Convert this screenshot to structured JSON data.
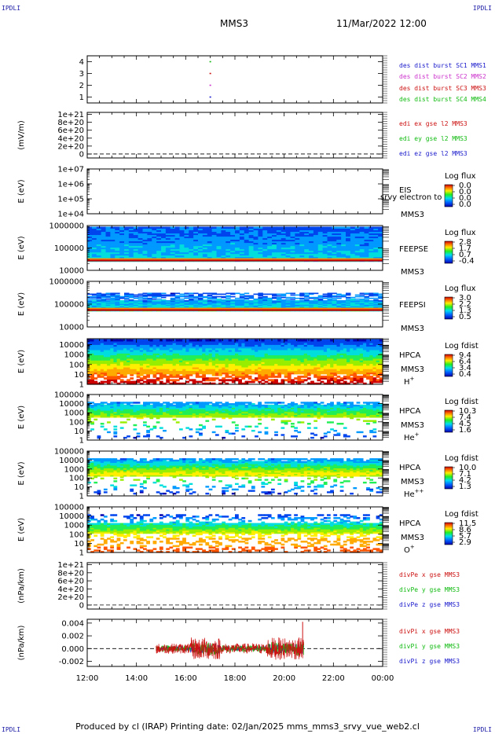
{
  "header": {
    "corner_label": "IPDLI",
    "spacecraft": "MMS3",
    "datetime": "11/Mar/2022 12:00"
  },
  "footer": {
    "text": "Produced by cl (IRAP)   Printing date: 02/Jan/2025   mms_mms3_srvy_vue_web2.cl"
  },
  "colors": {
    "blue": "#1a1acc",
    "magenta": "#cc33cc",
    "red": "#cc1111",
    "green": "#11bb11"
  },
  "chart_data": {
    "type": "line",
    "x_axis": {
      "ticks": [
        "12:00",
        "14:00",
        "16:00",
        "18:00",
        "20:00",
        "22:00",
        "00:00"
      ],
      "range_hours": [
        0,
        12
      ]
    },
    "panels": [
      {
        "id": "des_dist",
        "type": "scatter",
        "ylabel": "",
        "ytick_labels": [
          "4",
          "3",
          "2",
          "1"
        ],
        "ytick_values": [
          4,
          3,
          2,
          1
        ],
        "ylim": [
          0.5,
          4.5
        ],
        "legend": [
          {
            "label": "des dist burst SC1 MMS1",
            "color": "#1a1acc"
          },
          {
            "label": "des dist burst SC2 MMS2",
            "color": "#cc33cc"
          },
          {
            "label": "des dist burst SC3 MMS3",
            "color": "#cc1111"
          },
          {
            "label": "des dist burst SC4 MMS4",
            "color": "#11bb11"
          }
        ],
        "points": [
          {
            "t": 5.0,
            "y": 4,
            "color": "#11bb11"
          },
          {
            "t": 5.0,
            "y": 3,
            "color": "#cc1111"
          },
          {
            "t": 5.0,
            "y": 2,
            "color": "#cc33cc"
          },
          {
            "t": 5.0,
            "y": 1,
            "color": "#1a1acc"
          }
        ]
      },
      {
        "id": "edi_e",
        "type": "line",
        "ylabel": "(mV/m)",
        "ytick_labels": [
          "1e+21",
          "8e+20",
          "6e+20",
          "4e+20",
          "2e+20",
          "0"
        ],
        "ytick_values": [
          1e+21,
          8e+20,
          6e+20,
          4e+20,
          2e+20,
          0
        ],
        "ylim": [
          -1e+20,
          1.05e+21
        ],
        "zero_line": true,
        "legend": [
          {
            "label": "edi ex gse l2 MMS3",
            "color": "#cc1111"
          },
          {
            "label": "edi ey gse l2 MMS3",
            "color": "#11bb11"
          },
          {
            "label": "edi ez gse l2 MMS3",
            "color": "#1a1acc"
          }
        ]
      },
      {
        "id": "eis",
        "type": "heatmap",
        "ylabel": "E (eV)",
        "log": true,
        "ytick_labels": [
          "1e+07",
          "1e+06",
          "1e+05",
          "1e+04"
        ],
        "ytick_values": [
          10000000.0,
          1000000.0,
          100000.0,
          10000.0
        ],
        "ylim": [
          10000.0,
          10000000.0
        ],
        "instrument": [
          "EIS",
          "MMS3"
        ],
        "overlap_text": "srvy electron to",
        "colorbar": {
          "title": "Log flux",
          "labels": [
            "0.0",
            "0.0",
            "0.0",
            "0.0"
          ]
        }
      },
      {
        "id": "feepse",
        "type": "heatmap",
        "ylabel": "E (eV)",
        "log": true,
        "ytick_labels": [
          "1000000",
          "100000",
          "10000"
        ],
        "ytick_values": [
          1000000.0,
          100000.0,
          10000.0
        ],
        "ylim": [
          10000.0,
          1000000.0
        ],
        "instrument": [
          "FEEPSE",
          "MMS3"
        ],
        "colorbar": {
          "title": "Log flux",
          "labels": [
            "2.8",
            "1.7",
            "0.7",
            "-0.4"
          ]
        },
        "data_extent": {
          "t": [
            0,
            12
          ],
          "ylog": [
            4.4,
            5.95
          ]
        }
      },
      {
        "id": "feepsi",
        "type": "heatmap",
        "ylabel": "E (eV)",
        "log": true,
        "ytick_labels": [
          "1000000",
          "100000",
          "10000"
        ],
        "ytick_values": [
          1000000.0,
          100000.0,
          10000.0
        ],
        "ylim": [
          10000.0,
          1000000.0
        ],
        "instrument": [
          "FEEPSI",
          "MMS3"
        ],
        "colorbar": {
          "title": "Log flux",
          "labels": [
            "3.0",
            "2.2",
            "1.3",
            "0.5"
          ]
        },
        "data_extent": {
          "t": [
            0,
            12
          ],
          "ylog": [
            4.7,
            5.5
          ]
        }
      },
      {
        "id": "hpca_h",
        "type": "heatmap",
        "ylabel": "E (eV)",
        "log": true,
        "ytick_labels": [
          "10000",
          "1000",
          "100",
          "10",
          "1"
        ],
        "ytick_values": [
          10000.0,
          1000.0,
          100.0,
          10,
          1
        ],
        "ylim": [
          1,
          40000.0
        ],
        "instrument": [
          "HPCA",
          "MMS3"
        ],
        "species": "H",
        "species_sup": "+",
        "colorbar": {
          "title": "Log fdist",
          "labels": [
            "9.4",
            "6.4",
            "3.4",
            "0.4"
          ]
        }
      },
      {
        "id": "hpca_he",
        "type": "heatmap",
        "ylabel": "E (eV)",
        "log": true,
        "ytick_labels": [
          "100000",
          "10000",
          "1000",
          "100",
          "10",
          "1"
        ],
        "ytick_values": [
          100000.0,
          10000.0,
          1000.0,
          100.0,
          10,
          1
        ],
        "ylim": [
          1,
          100000.0
        ],
        "instrument": [
          "HPCA",
          "MMS3"
        ],
        "species": "He",
        "species_sup": "+",
        "colorbar": {
          "title": "Log fdist",
          "labels": [
            "10.3",
            "7.4",
            "4.5",
            "1.6"
          ]
        }
      },
      {
        "id": "hpca_hepp",
        "type": "heatmap",
        "ylabel": "E (eV)",
        "log": true,
        "ytick_labels": [
          "100000",
          "10000",
          "1000",
          "100",
          "10",
          "1"
        ],
        "ytick_values": [
          100000.0,
          10000.0,
          1000.0,
          100.0,
          10,
          1
        ],
        "ylim": [
          1,
          100000.0
        ],
        "instrument": [
          "HPCA",
          "MMS3"
        ],
        "species": "He",
        "species_sup": "++",
        "colorbar": {
          "title": "Log fdist",
          "labels": [
            "10.0",
            "7.1",
            "4.2",
            "1.3"
          ]
        }
      },
      {
        "id": "hpca_o",
        "type": "heatmap",
        "ylabel": "E (eV)",
        "log": true,
        "ytick_labels": [
          "100000",
          "10000",
          "1000",
          "100",
          "10",
          "1"
        ],
        "ytick_values": [
          100000.0,
          10000.0,
          1000.0,
          100.0,
          10,
          1
        ],
        "ylim": [
          1,
          100000.0
        ],
        "instrument": [
          "HPCA",
          "MMS3"
        ],
        "species": "O",
        "species_sup": "+",
        "colorbar": {
          "title": "Log fdist",
          "labels": [
            "11.5",
            "8.6",
            "5.7",
            "2.9"
          ]
        }
      },
      {
        "id": "divpe",
        "type": "line",
        "ylabel": "(nPa/km)",
        "ytick_labels": [
          "1e+21",
          "8e+20",
          "6e+20",
          "4e+20",
          "2e+20",
          "0"
        ],
        "ytick_values": [
          1e+21,
          8e+20,
          6e+20,
          4e+20,
          2e+20,
          0
        ],
        "ylim": [
          -1e+20,
          1.05e+21
        ],
        "zero_line": true,
        "legend": [
          {
            "label": "divPe x gse MMS3",
            "color": "#cc1111"
          },
          {
            "label": "divPe y gse MMS3",
            "color": "#11bb11"
          },
          {
            "label": "divPe z gse MMS3",
            "color": "#1a1acc"
          }
        ]
      },
      {
        "id": "divpi",
        "type": "line",
        "ylabel": "(nPa/km)",
        "ytick_labels": [
          "0.004",
          "0.002",
          "0.000",
          "-0.002"
        ],
        "ytick_values": [
          0.004,
          0.002,
          0.0,
          -0.002
        ],
        "ylim": [
          -0.0028,
          0.0046
        ],
        "zero_line": true,
        "legend": [
          {
            "label": "divPi x gse MMS3",
            "color": "#cc1111"
          },
          {
            "label": "divPi y gse MMS3",
            "color": "#11bb11"
          },
          {
            "label": "divPi z gse MMS3",
            "color": "#1a1acc"
          }
        ],
        "data_span_hours": [
          2.8,
          8.8
        ],
        "spike": {
          "t": 8.75,
          "y": 0.0042,
          "color": "#cc1111"
        }
      }
    ]
  }
}
